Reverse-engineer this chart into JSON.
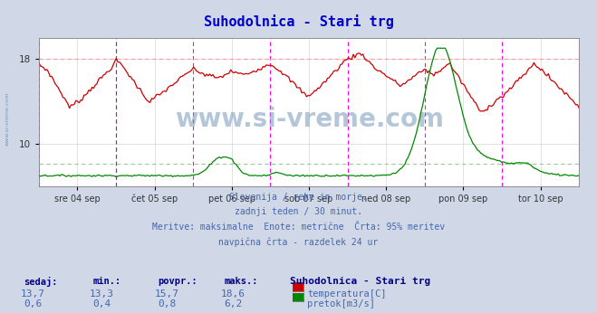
{
  "title": "Suhodolnica - Stari trg",
  "title_color": "#0000cc",
  "bg_color": "#d0d8e8",
  "plot_bg_color": "#ffffff",
  "xlabel_dates": [
    "sre 04 sep",
    "čet 05 sep",
    "pet 06 sep",
    "sob 07 sep",
    "ned 08 sep",
    "pon 09 sep",
    "tor 10 sep"
  ],
  "temp_color": "#cc0000",
  "flow_color": "#008800",
  "magenta_color": "#ff00ff",
  "grid_color": "#cccccc",
  "temp_95pct_color": "#ff9999",
  "flow_95pct_color": "#99cc99",
  "footer_lines": [
    "Slovenija / reke in morje.",
    "zadnji teden / 30 minut.",
    "Meritve: maksimalne  Enote: metrične  Črta: 95% meritev",
    "navpična črta - razdelek 24 ur"
  ],
  "footer_color": "#4466aa",
  "table_headers": [
    "sedaj:",
    "min.:",
    "povpr.:",
    "maks.:",
    "Suhodolnica - Stari trg"
  ],
  "table_header_color": "#000088",
  "table_data": [
    [
      "13,7",
      "13,3",
      "15,7",
      "18,6"
    ],
    [
      "0,6",
      "0,4",
      "0,8",
      "6,2"
    ]
  ],
  "table_data_color": "#4466aa",
  "legend_labels": [
    "temperatura[C]",
    "pretok[m3/s]"
  ],
  "legend_colors": [
    "#cc0000",
    "#008800"
  ],
  "watermark": "www.si-vreme.com",
  "watermark_color": "#7799bb",
  "temp_ylim": [
    6,
    20
  ],
  "flow_ylim": [
    0,
    7
  ],
  "temp_yticks": [
    10,
    18
  ],
  "temp_95line": 18.0,
  "flow_95line": 1.05,
  "side_label": "www.si-vreme.com"
}
